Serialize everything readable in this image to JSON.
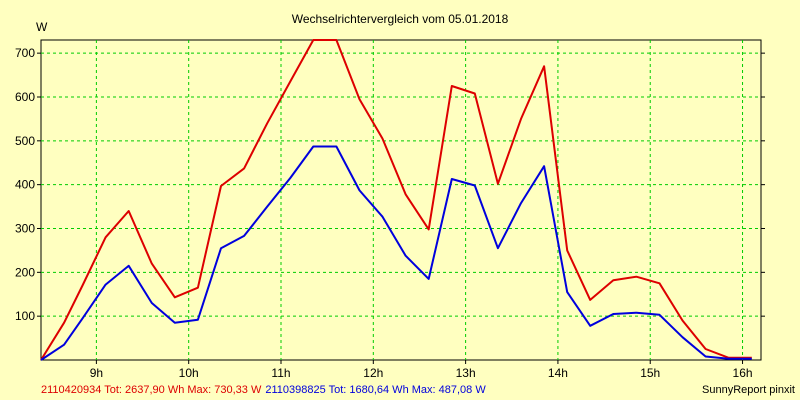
{
  "chart_data": {
    "type": "line",
    "title": "Wechselrichtervergleich vom 05.01.2018",
    "ylabel": "W",
    "xlabel": "",
    "ylim": [
      0,
      730
    ],
    "xlim": [
      8.4,
      16.2
    ],
    "y_ticks": [
      100,
      200,
      300,
      400,
      500,
      600,
      700
    ],
    "x_ticks": [
      {
        "value": 9,
        "label": "9h"
      },
      {
        "value": 10,
        "label": "10h"
      },
      {
        "value": 11,
        "label": "11h"
      },
      {
        "value": 12,
        "label": "12h"
      },
      {
        "value": 13,
        "label": "13h"
      },
      {
        "value": 14,
        "label": "14h"
      },
      {
        "value": 15,
        "label": "15h"
      },
      {
        "value": 16,
        "label": "16h"
      }
    ],
    "grid": true,
    "series": [
      {
        "name": "2110420934",
        "legend": "2110420934 Tot: 2637,90 Wh Max: 730,33 W",
        "color": "#dd0000",
        "x": [
          8.4,
          8.65,
          8.85,
          9.1,
          9.35,
          9.6,
          9.85,
          10.1,
          10.35,
          10.6,
          10.85,
          11.1,
          11.35,
          11.6,
          11.85,
          12.1,
          12.35,
          12.6,
          12.85,
          13.1,
          13.35,
          13.6,
          13.85,
          14.1,
          14.35,
          14.6,
          14.85,
          15.1,
          15.35,
          15.6,
          15.85,
          16.1
        ],
        "values": [
          0,
          85,
          170,
          280,
          340,
          220,
          143,
          165,
          397,
          437,
          540,
          635,
          730,
          730,
          595,
          505,
          378,
          298,
          625,
          608,
          402,
          550,
          670,
          250,
          137,
          182,
          190,
          175,
          90,
          25,
          5,
          5
        ]
      },
      {
        "name": "2110398825",
        "legend": "2110398825 Tot: 1680,64 Wh Max: 487,08 W",
        "color": "#0000dd",
        "x": [
          8.4,
          8.65,
          8.85,
          9.1,
          9.35,
          9.6,
          9.85,
          10.1,
          10.35,
          10.6,
          10.85,
          11.1,
          11.35,
          11.6,
          11.85,
          12.1,
          12.35,
          12.6,
          12.85,
          13.1,
          13.35,
          13.6,
          13.85,
          14.1,
          14.35,
          14.6,
          14.85,
          15.1,
          15.35,
          15.6,
          15.85,
          16.1
        ],
        "values": [
          0,
          35,
          95,
          172,
          215,
          130,
          85,
          92,
          255,
          283,
          350,
          415,
          487,
          487,
          387,
          327,
          238,
          185,
          413,
          398,
          255,
          358,
          442,
          155,
          78,
          105,
          108,
          103,
          52,
          8,
          3,
          3
        ]
      }
    ]
  },
  "footer": {
    "credit": "SunnyReport pinxit"
  }
}
